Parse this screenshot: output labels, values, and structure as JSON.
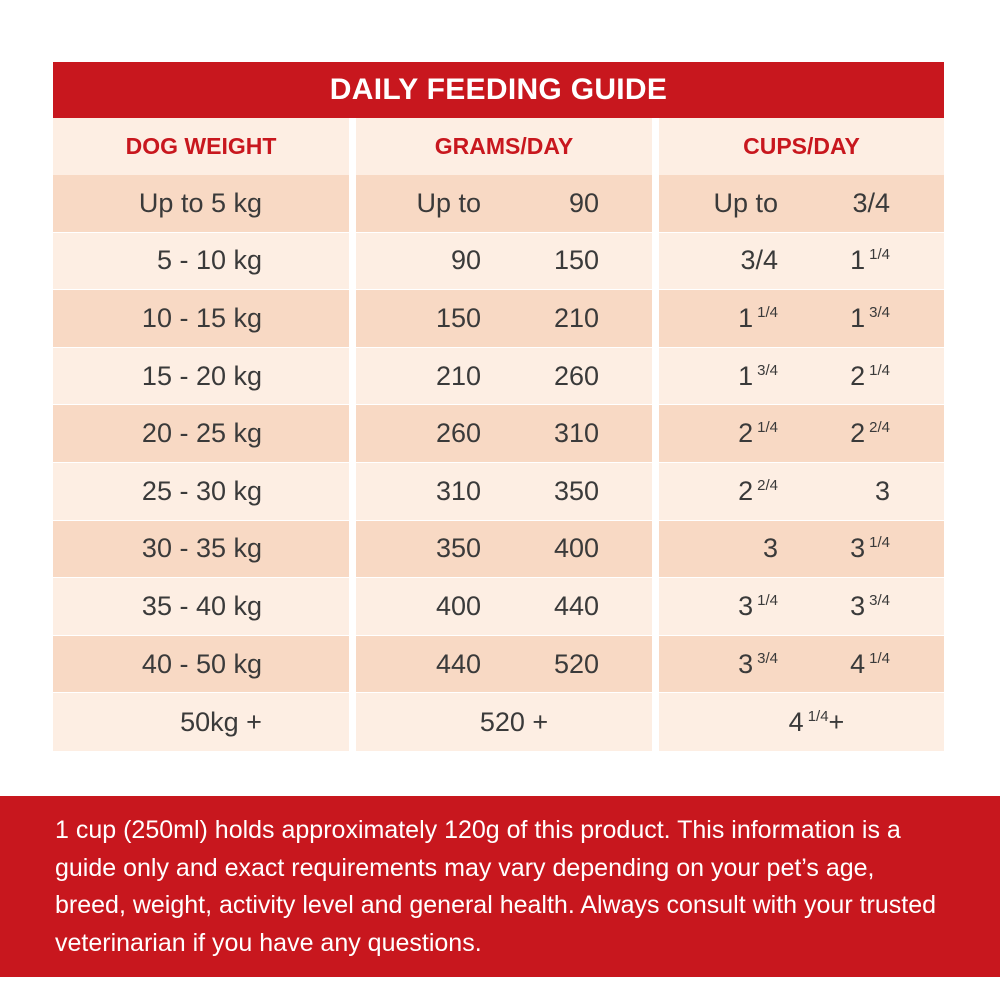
{
  "title": "DAILY FEEDING GUIDE",
  "headers": {
    "weight": "DOG WEIGHT",
    "grams": "GRAMS/DAY",
    "cups": "CUPS/DAY"
  },
  "rows": [
    {
      "weight": "Up to 5 kg",
      "g1": "Up to",
      "g2": "90",
      "c1": "Up to",
      "c1f": "",
      "c2": "3/4",
      "c2f": ""
    },
    {
      "weight": "5 - 10 kg",
      "g1": "90",
      "g2": "150",
      "c1": "3/4",
      "c1f": "",
      "c2": "1",
      "c2f": "1/4"
    },
    {
      "weight": "10 - 15 kg",
      "g1": "150",
      "g2": "210",
      "c1": "1",
      "c1f": "1/4",
      "c2": "1",
      "c2f": "3/4"
    },
    {
      "weight": "15 - 20 kg",
      "g1": "210",
      "g2": "260",
      "c1": "1",
      "c1f": "3/4",
      "c2": "2",
      "c2f": "1/4"
    },
    {
      "weight": "20 - 25 kg",
      "g1": "260",
      "g2": "310",
      "c1": "2",
      "c1f": "1/4",
      "c2": "2",
      "c2f": "2/4"
    },
    {
      "weight": "25 - 30 kg",
      "g1": "310",
      "g2": "350",
      "c1": "2",
      "c1f": "2/4",
      "c2": "3",
      "c2f": ""
    },
    {
      "weight": "30 - 35 kg",
      "g1": "350",
      "g2": "400",
      "c1": "3",
      "c1f": "",
      "c2": "3",
      "c2f": "1/4"
    },
    {
      "weight": "35 - 40 kg",
      "g1": "400",
      "g2": "440",
      "c1": "3",
      "c1f": "1/4",
      "c2": "3",
      "c2f": "3/4"
    },
    {
      "weight": "40 - 50 kg",
      "g1": "440",
      "g2": "520",
      "c1": "3",
      "c1f": "3/4",
      "c2": "4",
      "c2f": "1/4"
    }
  ],
  "last_row": {
    "weight": "50kg +",
    "grams": "520 +",
    "cups_whole": "4",
    "cups_frac": "1/4",
    "cups_suffix": "+"
  },
  "footer_text": "1 cup (250ml) holds approximately 120g of this product. This information is a guide only and exact requirements may vary depending on your pet’s age, breed, weight, activity level and general health. Always consult with your trusted veterinarian if you have any questions.",
  "colors": {
    "brand_red": "#c8171e",
    "row_light": "#fdeee3",
    "row_dark": "#f8d9c4"
  }
}
